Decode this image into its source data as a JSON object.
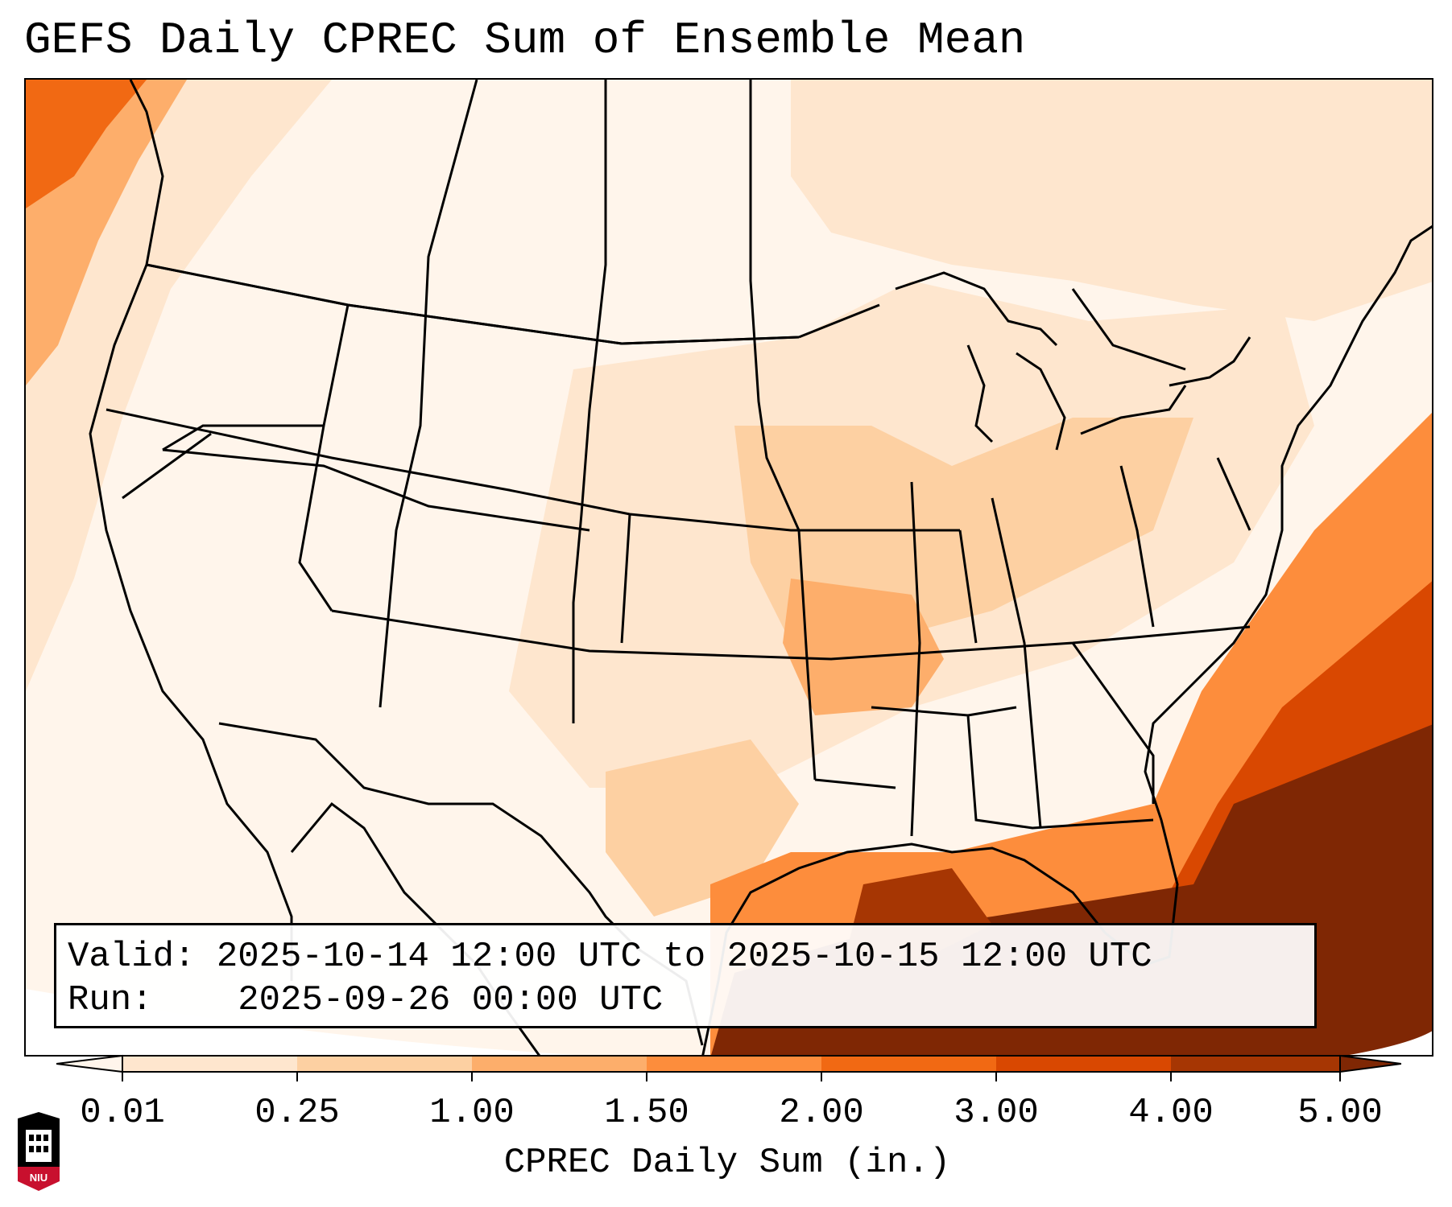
{
  "title": "GEFS Daily CPREC Sum of Ensemble Mean",
  "info": {
    "valid_label": "Valid:",
    "valid_value": "2025-10-14 12:00 UTC to 2025-10-15 12:00 UTC",
    "run_label": "Run:",
    "run_value": "2025-09-26 00:00 UTC"
  },
  "colorbar": {
    "label": "CPREC Daily Sum (in.)",
    "ticks": [
      "0.01",
      "0.25",
      "1.00",
      "1.50",
      "2.00",
      "3.00",
      "4.00",
      "5.00"
    ],
    "colors": [
      "#fff5eb",
      "#fee6ce",
      "#fdd0a2",
      "#fdae6b",
      "#fd8d3c",
      "#f16913",
      "#d94801",
      "#a63603",
      "#7f2704"
    ]
  },
  "logo": {
    "text": "NIU",
    "name": "niu-logo"
  }
}
